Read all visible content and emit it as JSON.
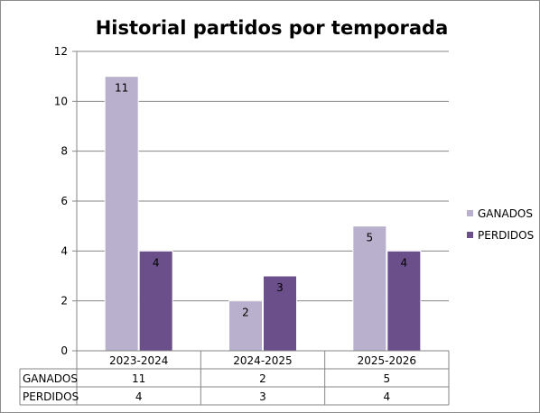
{
  "chart_data": {
    "type": "bar",
    "title": "Historial partidos por temporada",
    "categories": [
      "2023-2024",
      "2024-2025",
      "2025-2026"
    ],
    "series": [
      {
        "name": "GANADOS",
        "values": [
          11,
          2,
          5
        ],
        "color": "#b8b0cc"
      },
      {
        "name": "PERDIDOS",
        "values": [
          4,
          3,
          4
        ],
        "color": "#6b4f8a"
      }
    ],
    "ylim": [
      0,
      12
    ],
    "yticks": [
      0,
      2,
      4,
      6,
      8,
      10,
      12
    ],
    "grid": true,
    "legend_position": "right",
    "data_table": true,
    "xlabel": "",
    "ylabel": ""
  }
}
